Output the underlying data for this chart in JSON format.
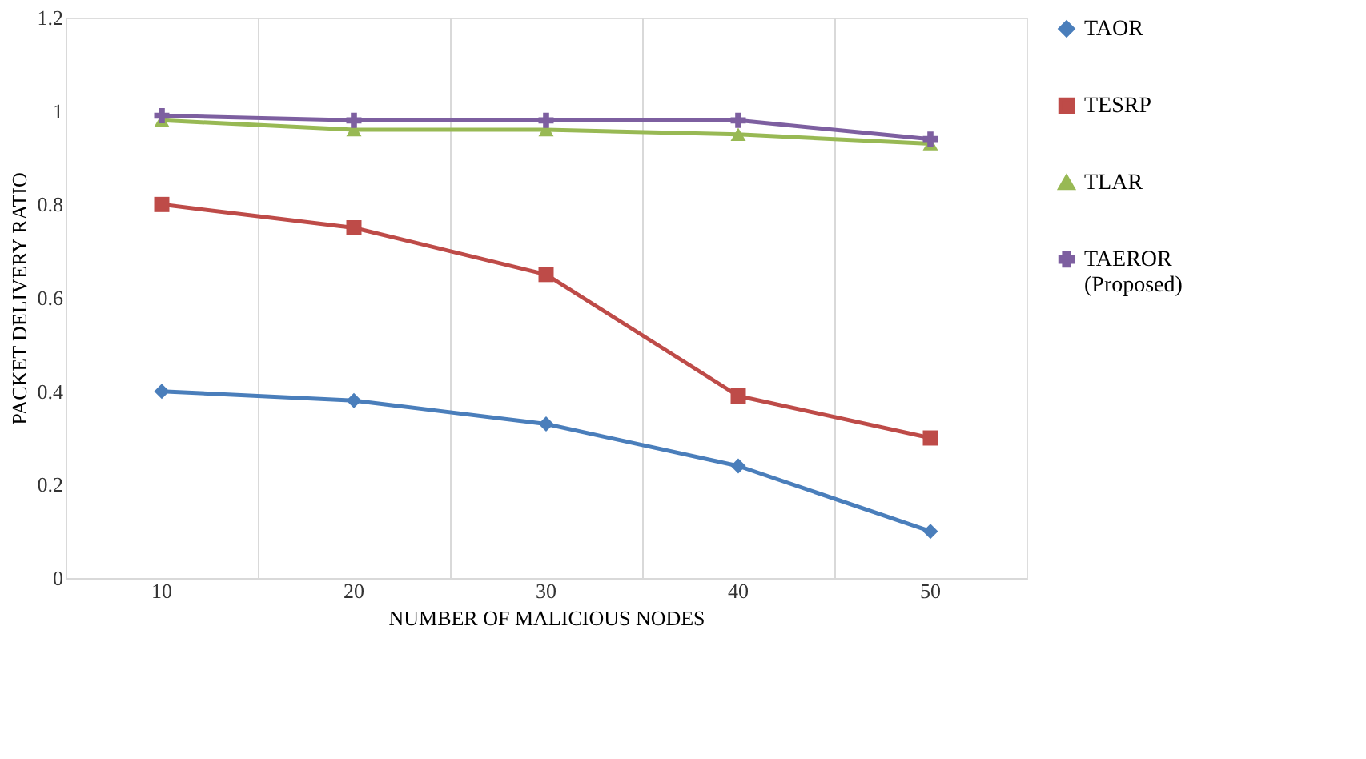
{
  "chart_data": {
    "type": "line",
    "xlabel": "NUMBER OF MALICIOUS NODES",
    "ylabel": "PACKET DELIVERY RATIO",
    "categories": [
      "10",
      "20",
      "30",
      "40",
      "50"
    ],
    "ylim": [
      0,
      1.2
    ],
    "yticks": [
      0,
      0.2,
      0.4,
      0.6,
      0.8,
      1,
      1.2
    ],
    "grid": "x",
    "legend": "right",
    "series": [
      {
        "name": "TAOR",
        "color": "#4a7ebb",
        "marker": "diamond",
        "values": [
          0.4,
          0.38,
          0.33,
          0.24,
          0.1
        ]
      },
      {
        "name": "TESRP",
        "color": "#be4b48",
        "marker": "square",
        "values": [
          0.8,
          0.75,
          0.65,
          0.39,
          0.3
        ]
      },
      {
        "name": "TLAR",
        "color": "#98b954",
        "marker": "triangle",
        "values": [
          0.98,
          0.96,
          0.96,
          0.95,
          0.93
        ]
      },
      {
        "name": "TAEROR (Proposed)",
        "color": "#7d5fa0",
        "marker": "cross",
        "values": [
          0.99,
          0.98,
          0.98,
          0.98,
          0.94
        ]
      }
    ]
  }
}
